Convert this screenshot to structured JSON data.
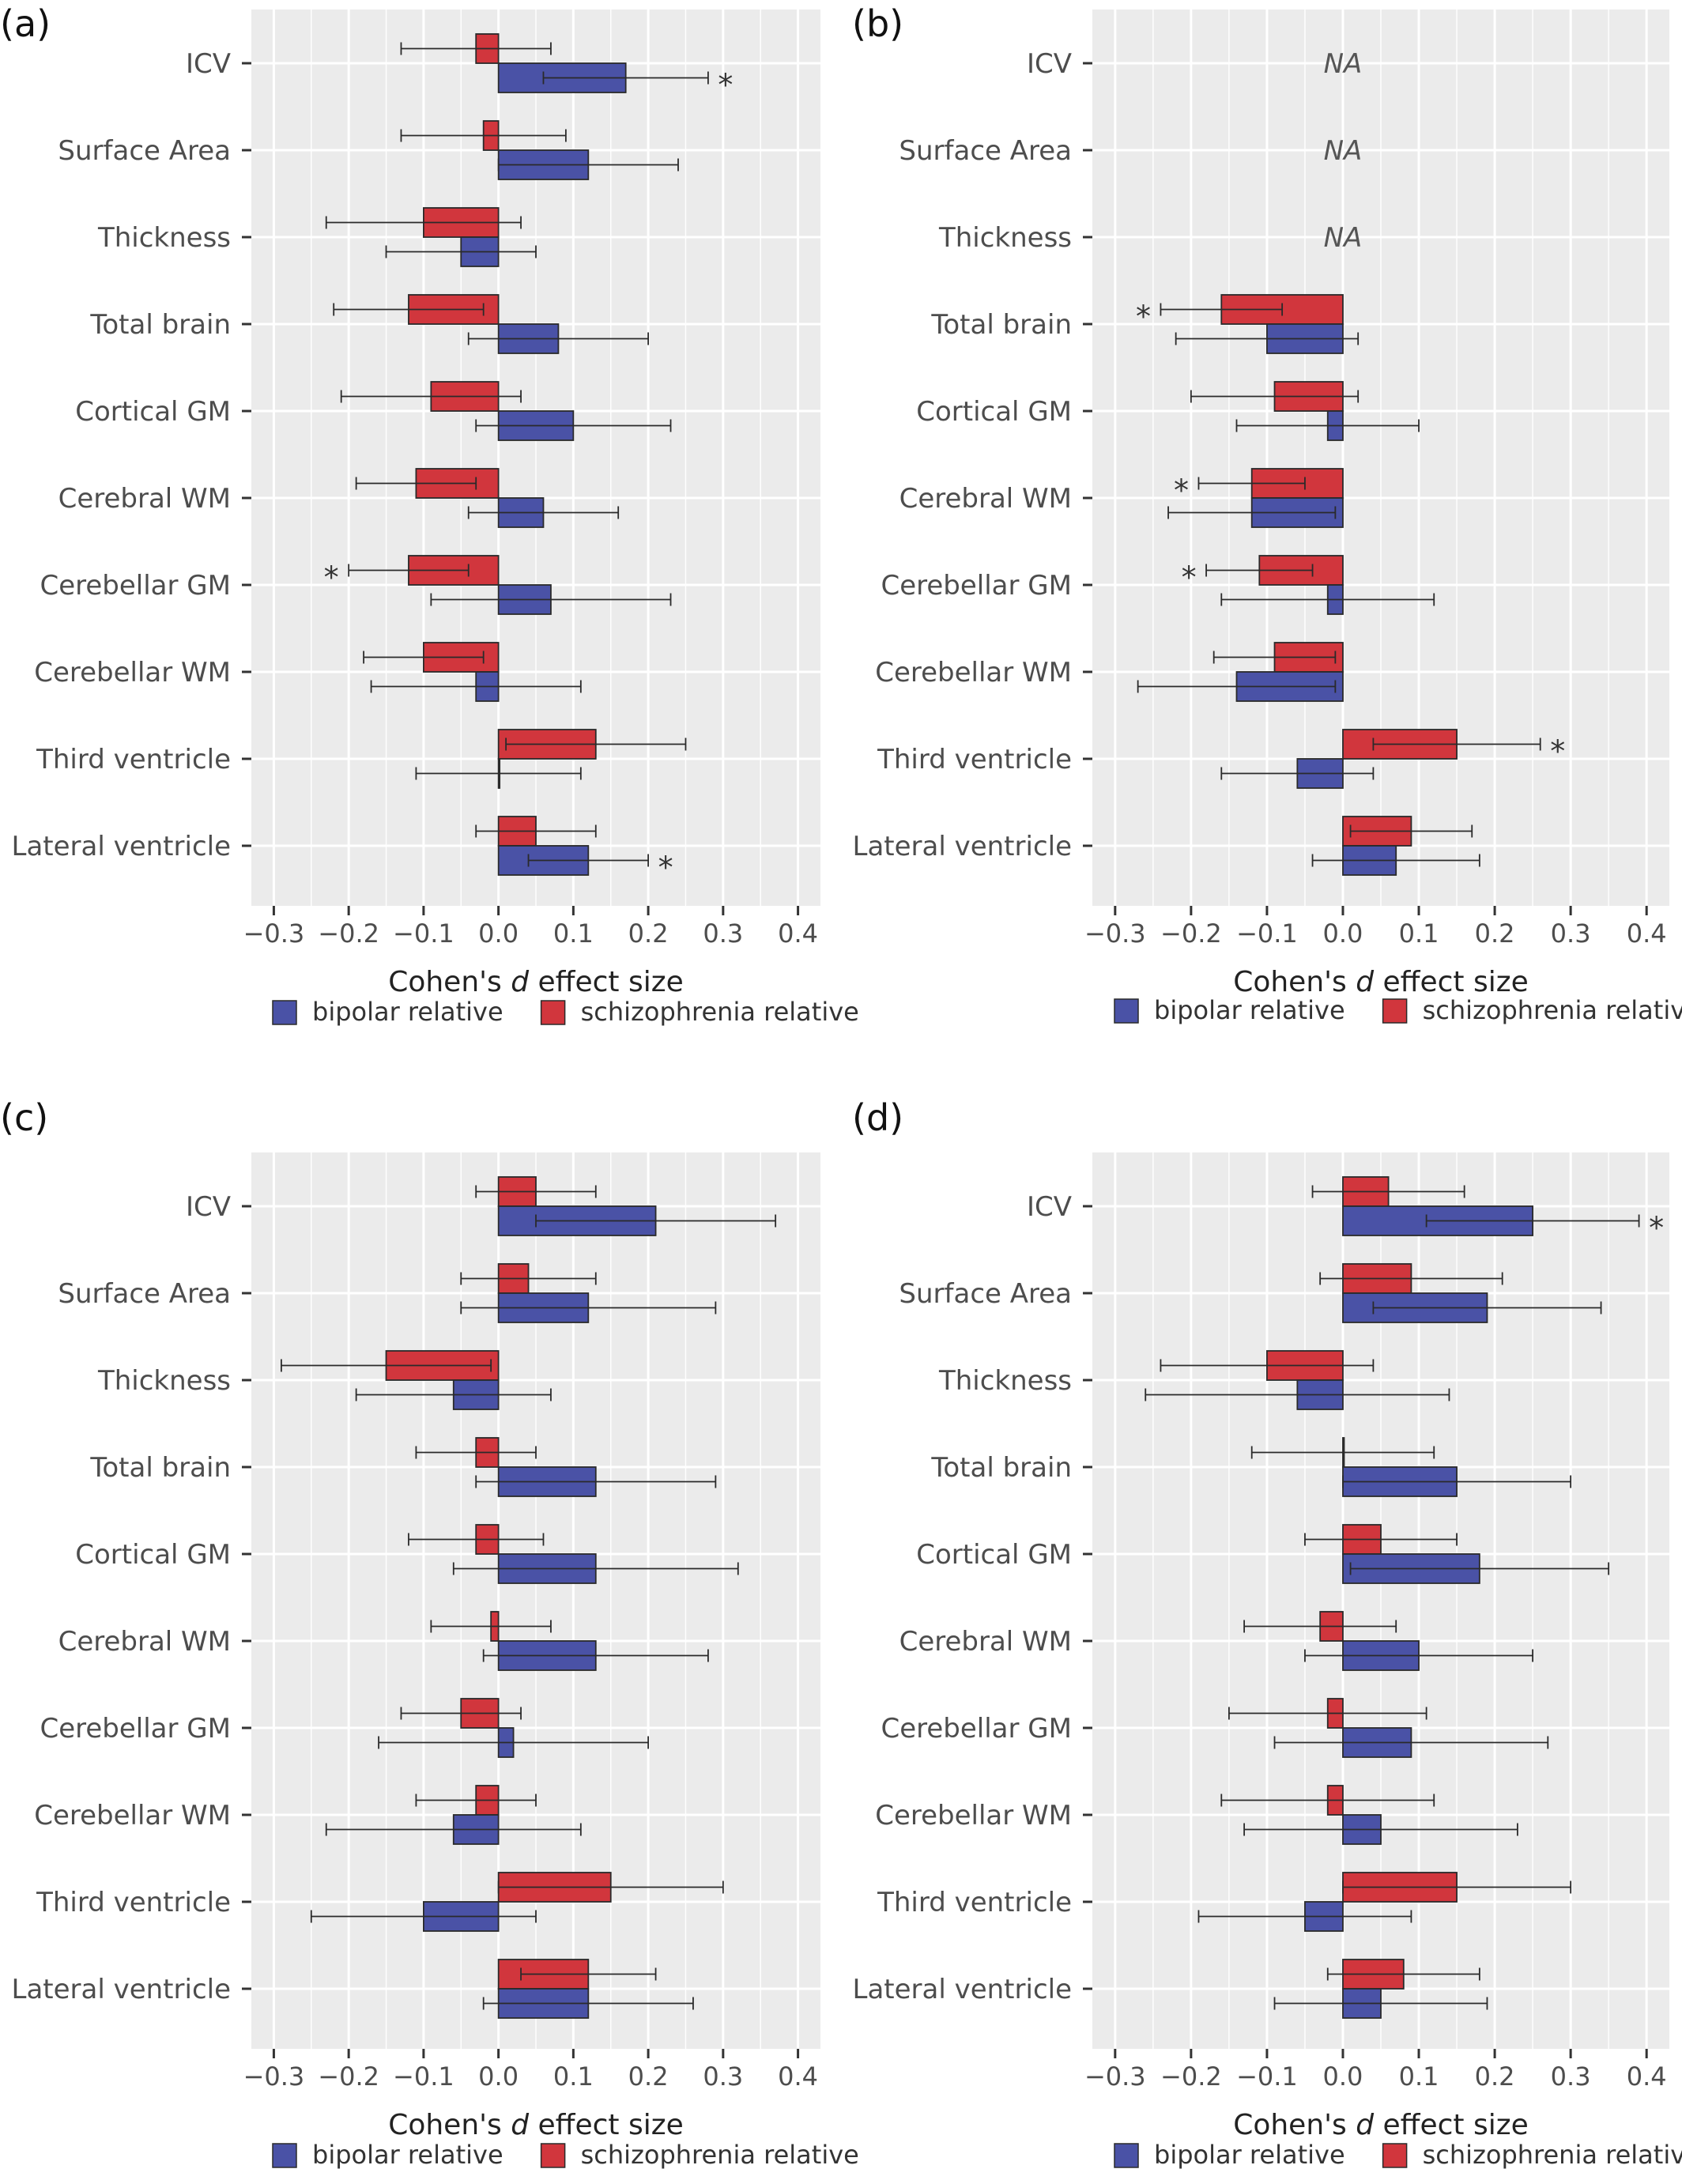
{
  "figure": {
    "legend": [
      {
        "label": "bipolar relative",
        "color": "#4a52a6",
        "series": "bipolar"
      },
      {
        "label": "schizophrenia relative",
        "color": "#d1363d",
        "series": "schizophrenia"
      }
    ],
    "na_label": "NA",
    "significance_marker": "*",
    "panel_bg": "#ebebeb",
    "grid_color": "#ffffff"
  },
  "chart_data": [
    {
      "type": "bar",
      "orientation": "horizontal",
      "panel_label": "(a)",
      "xlabel_parts": [
        "Cohen's ",
        "d",
        " effect size"
      ],
      "xlim": [
        -0.33,
        0.43
      ],
      "xticks": [
        -0.3,
        -0.2,
        -0.1,
        0.0,
        0.1,
        0.2,
        0.3,
        0.4
      ],
      "xtick_labels": [
        "−0.3",
        "−0.2",
        "−0.1",
        "0.0",
        "0.1",
        "0.2",
        "0.3",
        "0.4"
      ],
      "categories": [
        "ICV",
        "Surface Area",
        "Thickness",
        "Total brain",
        "Cortical GM",
        "Cerebral WM",
        "Cerebellar GM",
        "Cerebellar WM",
        "Third ventricle",
        "Lateral ventricle"
      ],
      "series": [
        {
          "name": "schizophrenia relative",
          "values": [
            -0.03,
            -0.02,
            -0.1,
            -0.12,
            -0.09,
            -0.11,
            -0.12,
            -0.1,
            0.13,
            0.05
          ],
          "ci_low": [
            -0.13,
            -0.13,
            -0.23,
            -0.22,
            -0.21,
            -0.19,
            -0.2,
            -0.18,
            0.01,
            -0.03
          ],
          "ci_high": [
            0.07,
            0.09,
            0.03,
            -0.02,
            0.03,
            -0.03,
            -0.04,
            -0.02,
            0.25,
            0.13
          ],
          "significant": [
            false,
            false,
            false,
            false,
            false,
            false,
            true,
            false,
            false,
            false
          ]
        },
        {
          "name": "bipolar relative",
          "values": [
            0.17,
            0.12,
            -0.05,
            0.08,
            0.1,
            0.06,
            0.07,
            -0.03,
            0.0,
            0.12
          ],
          "ci_low": [
            0.06,
            0.0,
            -0.15,
            -0.04,
            -0.03,
            -0.04,
            -0.09,
            -0.17,
            -0.11,
            0.04
          ],
          "ci_high": [
            0.28,
            0.24,
            0.05,
            0.2,
            0.23,
            0.16,
            0.23,
            0.11,
            0.11,
            0.2
          ],
          "significant": [
            true,
            false,
            false,
            false,
            false,
            false,
            false,
            false,
            false,
            true
          ]
        }
      ],
      "na_rows": []
    },
    {
      "type": "bar",
      "orientation": "horizontal",
      "panel_label": "(b)",
      "xlabel_parts": [
        "Cohen's ",
        "d",
        " effect size"
      ],
      "xlim": [
        -0.33,
        0.43
      ],
      "xticks": [
        -0.3,
        -0.2,
        -0.1,
        0.0,
        0.1,
        0.2,
        0.3,
        0.4
      ],
      "xtick_labels": [
        "−0.3",
        "−0.2",
        "−0.1",
        "0.0",
        "0.1",
        "0.2",
        "0.3",
        "0.4"
      ],
      "categories": [
        "ICV",
        "Surface Area",
        "Thickness",
        "Total brain",
        "Cortical GM",
        "Cerebral WM",
        "Cerebellar GM",
        "Cerebellar WM",
        "Third ventricle",
        "Lateral ventricle"
      ],
      "series": [
        {
          "name": "schizophrenia relative",
          "values": [
            null,
            null,
            null,
            -0.16,
            -0.09,
            -0.12,
            -0.11,
            -0.09,
            0.15,
            0.09
          ],
          "ci_low": [
            null,
            null,
            null,
            -0.24,
            -0.2,
            -0.19,
            -0.18,
            -0.17,
            0.04,
            0.01
          ],
          "ci_high": [
            null,
            null,
            null,
            -0.08,
            0.02,
            -0.05,
            -0.04,
            -0.01,
            0.26,
            0.17
          ],
          "significant": [
            false,
            false,
            false,
            true,
            false,
            true,
            true,
            false,
            true,
            false
          ]
        },
        {
          "name": "bipolar relative",
          "values": [
            null,
            null,
            null,
            -0.1,
            -0.02,
            -0.12,
            -0.02,
            -0.14,
            -0.06,
            0.07
          ],
          "ci_low": [
            null,
            null,
            null,
            -0.22,
            -0.14,
            -0.23,
            -0.16,
            -0.27,
            -0.16,
            -0.04
          ],
          "ci_high": [
            null,
            null,
            null,
            0.02,
            0.1,
            -0.01,
            0.12,
            -0.01,
            0.04,
            0.18
          ],
          "significant": [
            false,
            false,
            false,
            false,
            false,
            false,
            false,
            false,
            false,
            false
          ]
        }
      ],
      "na_rows": [
        0,
        1,
        2
      ]
    },
    {
      "type": "bar",
      "orientation": "horizontal",
      "panel_label": "(c)",
      "xlabel_parts": [
        "Cohen's ",
        "d",
        " effect size"
      ],
      "xlim": [
        -0.33,
        0.43
      ],
      "xticks": [
        -0.3,
        -0.2,
        -0.1,
        0.0,
        0.1,
        0.2,
        0.3,
        0.4
      ],
      "xtick_labels": [
        "−0.3",
        "−0.2",
        "−0.1",
        "0.0",
        "0.1",
        "0.2",
        "0.3",
        "0.4"
      ],
      "categories": [
        "ICV",
        "Surface Area",
        "Thickness",
        "Total brain",
        "Cortical GM",
        "Cerebral WM",
        "Cerebellar GM",
        "Cerebellar WM",
        "Third ventricle",
        "Lateral ventricle"
      ],
      "series": [
        {
          "name": "schizophrenia relative",
          "values": [
            0.05,
            0.04,
            -0.15,
            -0.03,
            -0.03,
            -0.01,
            -0.05,
            -0.03,
            0.15,
            0.12
          ],
          "ci_low": [
            -0.03,
            -0.05,
            -0.29,
            -0.11,
            -0.12,
            -0.09,
            -0.13,
            -0.11,
            0.0,
            0.03
          ],
          "ci_high": [
            0.13,
            0.13,
            -0.01,
            0.05,
            0.06,
            0.07,
            0.03,
            0.05,
            0.3,
            0.21
          ],
          "significant": [
            false,
            false,
            false,
            false,
            false,
            false,
            false,
            false,
            false,
            false
          ]
        },
        {
          "name": "bipolar relative",
          "values": [
            0.21,
            0.12,
            -0.06,
            0.13,
            0.13,
            0.13,
            0.02,
            -0.06,
            -0.1,
            0.12
          ],
          "ci_low": [
            0.05,
            -0.05,
            -0.19,
            -0.03,
            -0.06,
            -0.02,
            -0.16,
            -0.23,
            -0.25,
            -0.02
          ],
          "ci_high": [
            0.37,
            0.29,
            0.07,
            0.29,
            0.32,
            0.28,
            0.2,
            0.11,
            0.05,
            0.26
          ],
          "significant": [
            false,
            false,
            false,
            false,
            false,
            false,
            false,
            false,
            false,
            false
          ]
        }
      ],
      "na_rows": []
    },
    {
      "type": "bar",
      "orientation": "horizontal",
      "panel_label": "(d)",
      "xlabel_parts": [
        "Cohen's ",
        "d",
        " effect size"
      ],
      "xlim": [
        -0.33,
        0.43
      ],
      "xticks": [
        -0.3,
        -0.2,
        -0.1,
        0.0,
        0.1,
        0.2,
        0.3,
        0.4
      ],
      "xtick_labels": [
        "−0.3",
        "−0.2",
        "−0.1",
        "0.0",
        "0.1",
        "0.2",
        "0.3",
        "0.4"
      ],
      "categories": [
        "ICV",
        "Surface Area",
        "Thickness",
        "Total brain",
        "Cortical GM",
        "Cerebral WM",
        "Cerebellar GM",
        "Cerebellar WM",
        "Third ventricle",
        "Lateral ventricle"
      ],
      "series": [
        {
          "name": "schizophrenia relative",
          "values": [
            0.06,
            0.09,
            -0.1,
            0.0,
            0.05,
            -0.03,
            -0.02,
            -0.02,
            0.15,
            0.08
          ],
          "ci_low": [
            -0.04,
            -0.03,
            -0.24,
            -0.12,
            -0.05,
            -0.13,
            -0.15,
            -0.16,
            0.0,
            -0.02
          ],
          "ci_high": [
            0.16,
            0.21,
            0.04,
            0.12,
            0.15,
            0.07,
            0.11,
            0.12,
            0.3,
            0.18
          ],
          "significant": [
            false,
            false,
            false,
            false,
            false,
            false,
            false,
            false,
            false,
            false
          ]
        },
        {
          "name": "bipolar relative",
          "values": [
            0.25,
            0.19,
            -0.06,
            0.15,
            0.18,
            0.1,
            0.09,
            0.05,
            -0.05,
            0.05
          ],
          "ci_low": [
            0.11,
            0.04,
            -0.26,
            0.0,
            0.01,
            -0.05,
            -0.09,
            -0.13,
            -0.19,
            -0.09
          ],
          "ci_high": [
            0.39,
            0.34,
            0.14,
            0.3,
            0.35,
            0.25,
            0.27,
            0.23,
            0.09,
            0.19
          ],
          "significant": [
            true,
            false,
            false,
            false,
            false,
            false,
            false,
            false,
            false,
            false
          ]
        }
      ],
      "na_rows": []
    }
  ]
}
